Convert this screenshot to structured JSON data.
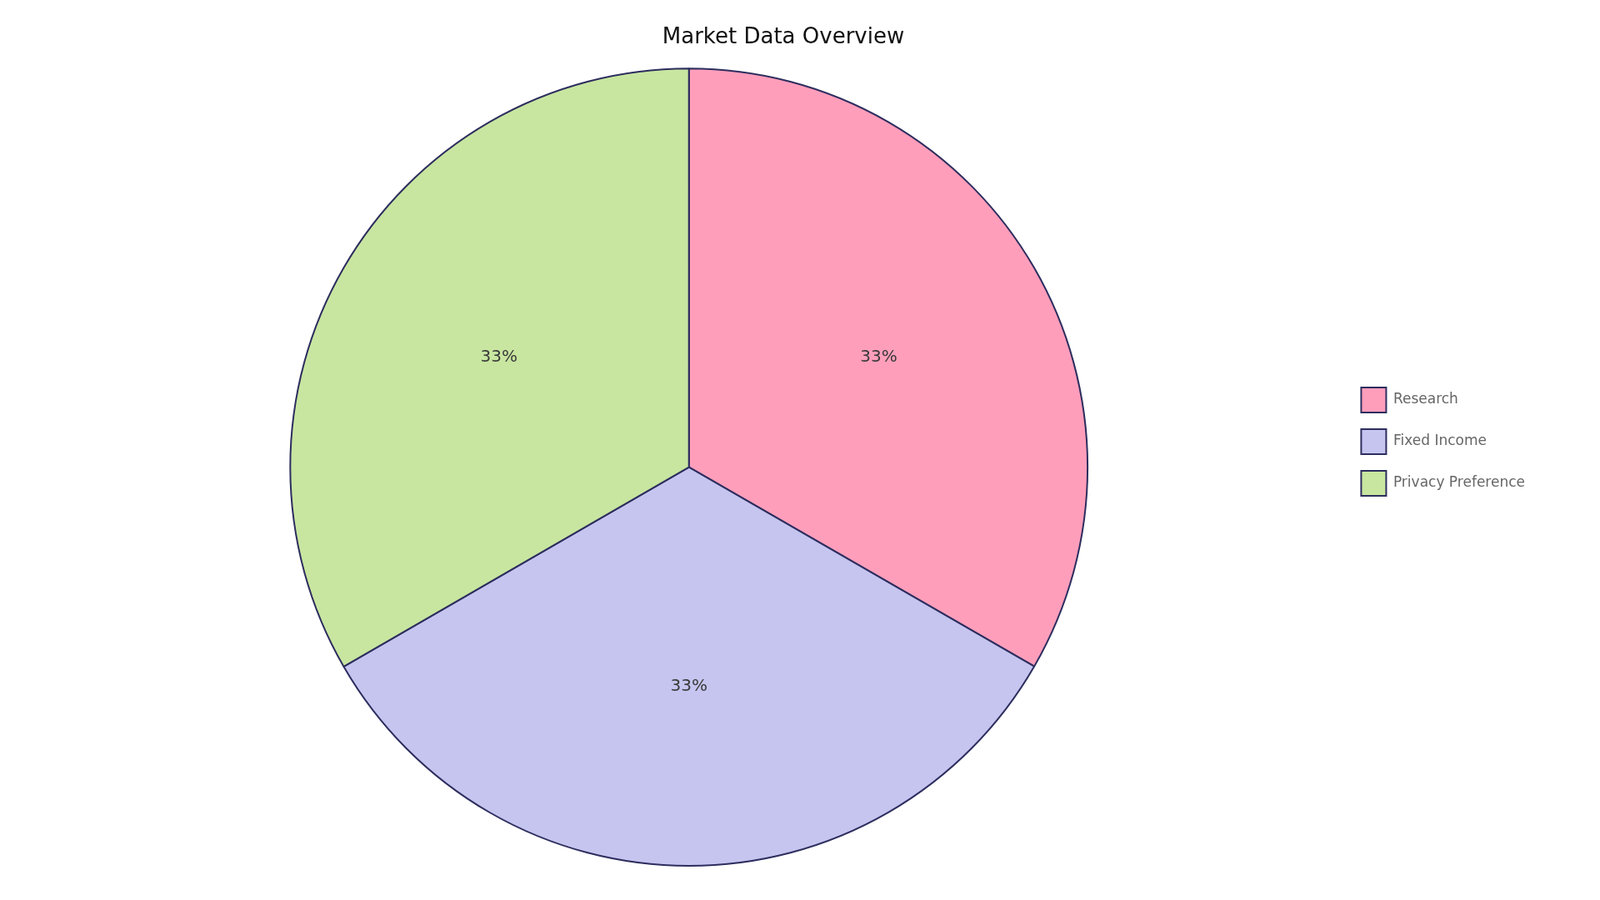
{
  "chart_data": {
    "type": "pie",
    "title": "Market Data Overview",
    "categories": [
      "Research",
      "Fixed Income",
      "Privacy Preference"
    ],
    "values": [
      33.33,
      33.33,
      33.34
    ],
    "value_labels": [
      "33%",
      "33%",
      "33%"
    ],
    "colors": [
      "#FF9EBB",
      "#C5C5F0",
      "#C8E6A0"
    ],
    "data_labels": true,
    "legend": "right"
  }
}
